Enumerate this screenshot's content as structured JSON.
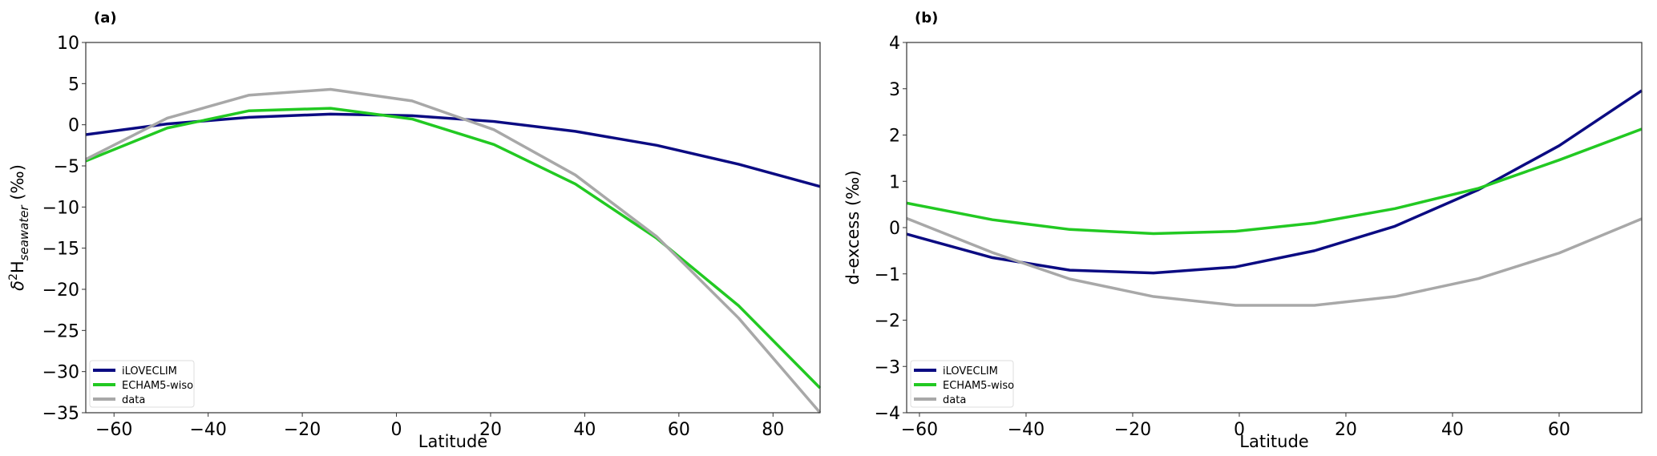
{
  "colors": {
    "iloveclim": "#0b0b82",
    "echam": "#22c922",
    "data": "#a8a8a8"
  },
  "chart_data": [
    {
      "type": "line",
      "panel_label": "(a)",
      "xlabel": "Latitude",
      "ylabel": {
        "main": "δ",
        "sup": "2",
        "h": "H",
        "sub": "seawater",
        "unit": " (‰)"
      },
      "xlim": [
        -66,
        90
      ],
      "ylim": [
        -35,
        10
      ],
      "xticks": [
        -60,
        -40,
        -20,
        0,
        20,
        40,
        60,
        80
      ],
      "yticks": [
        10,
        5,
        0,
        -5,
        -10,
        -15,
        -20,
        -25,
        -30,
        -35
      ],
      "legend_position": "bottom-left",
      "x": [
        -66,
        -48.7,
        -31.3,
        -14,
        3.3,
        20.7,
        38,
        55.3,
        72.7,
        90
      ],
      "series": [
        {
          "name": "iLOVECLIM",
          "key": "iloveclim",
          "values": [
            -1.2,
            0.1,
            0.9,
            1.3,
            1.1,
            0.4,
            -0.8,
            -2.5,
            -4.8,
            -7.5
          ]
        },
        {
          "name": "ECHAM5-wiso",
          "key": "echam",
          "values": [
            -4.4,
            -0.4,
            1.7,
            2.0,
            0.7,
            -2.4,
            -7.2,
            -13.8,
            -22.0,
            -32.0
          ]
        },
        {
          "name": "data",
          "key": "data",
          "values": [
            -4.2,
            0.8,
            3.6,
            4.3,
            2.9,
            -0.6,
            -6.1,
            -13.6,
            -23.5,
            -35.0
          ]
        }
      ]
    },
    {
      "type": "line",
      "panel_label": "(b)",
      "xlabel": "Latitude",
      "ylabel": {
        "text": "d-excess (‰)"
      },
      "xlim": [
        -62.4,
        75.5
      ],
      "ylim": [
        -4,
        4
      ],
      "xticks": [
        -60,
        -40,
        -20,
        0,
        20,
        40,
        60
      ],
      "yticks": [
        4,
        3,
        2,
        1,
        0,
        -1,
        -2,
        -3,
        -4
      ],
      "legend_position": "bottom-left",
      "x": [
        -62.4,
        -46.3,
        -31.8,
        -16.1,
        -0.7,
        14.1,
        29.2,
        44.9,
        60.0,
        75.5
      ],
      "series": [
        {
          "name": "iLOVECLIM",
          "key": "iloveclim",
          "values": [
            -0.14,
            -0.65,
            -0.92,
            -0.98,
            -0.85,
            -0.5,
            0.03,
            0.82,
            1.77,
            2.96
          ]
        },
        {
          "name": "ECHAM5-wiso",
          "key": "echam",
          "values": [
            0.53,
            0.17,
            -0.04,
            -0.13,
            -0.08,
            0.1,
            0.41,
            0.85,
            1.46,
            2.13
          ]
        },
        {
          "name": "data",
          "key": "data",
          "values": [
            0.2,
            -0.54,
            -1.11,
            -1.49,
            -1.68,
            -1.68,
            -1.49,
            -1.1,
            -0.55,
            0.19
          ]
        }
      ]
    }
  ]
}
